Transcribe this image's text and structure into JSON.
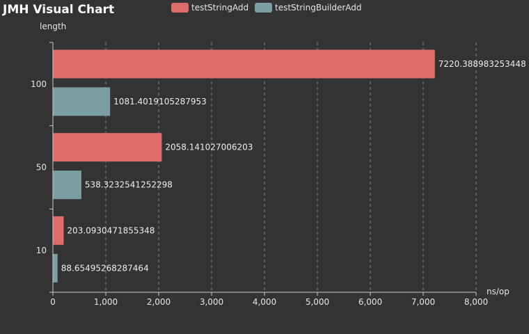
{
  "chart_data": {
    "type": "bar",
    "orientation": "horizontal",
    "title": "JMH Visual Chart",
    "xlabel": "ns/op",
    "ylabel": "length",
    "categories": [
      "100",
      "50",
      "10"
    ],
    "series": [
      {
        "name": "testStringAdd",
        "color": "#e06c69",
        "values": [
          7220.388983253448,
          2058.141027006203,
          203.0930471855348
        ],
        "labels": [
          "7220.388983253448",
          "2058.141027006203",
          "203.0930471855348"
        ]
      },
      {
        "name": "testStringBuilderAdd",
        "color": "#7a9ea4",
        "values": [
          1081.4019105287953,
          538.3232541252298,
          88.65495268287464
        ],
        "labels": [
          "1081.4019105287953",
          "538.3232541252298",
          "88.65495268287464"
        ]
      }
    ],
    "xlim": [
      0,
      8000
    ],
    "xticks": [
      0,
      1000,
      2000,
      3000,
      4000,
      5000,
      6000,
      7000,
      8000
    ],
    "xtick_labels": [
      "0",
      "1,000",
      "2,000",
      "3,000",
      "4,000",
      "5,000",
      "6,000",
      "7,000",
      "8,000"
    ],
    "grid": "vertical-dashed",
    "legend_position": "top"
  }
}
